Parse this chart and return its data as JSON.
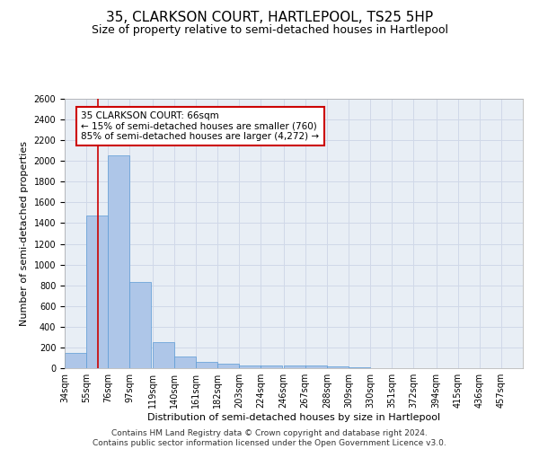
{
  "title": "35, CLARKSON COURT, HARTLEPOOL, TS25 5HP",
  "subtitle": "Size of property relative to semi-detached houses in Hartlepool",
  "xlabel": "Distribution of semi-detached houses by size in Hartlepool",
  "ylabel": "Number of semi-detached properties",
  "footer_line1": "Contains HM Land Registry data © Crown copyright and database right 2024.",
  "footer_line2": "Contains public sector information licensed under the Open Government Licence v3.0.",
  "annotation_title": "35 CLARKSON COURT: 66sqm",
  "annotation_line1": "← 15% of semi-detached houses are smaller (760)",
  "annotation_line2": "85% of semi-detached houses are larger (4,272) →",
  "property_size": 66,
  "bar_left_edges": [
    34,
    55,
    76,
    97,
    119,
    140,
    161,
    182,
    203,
    224,
    246,
    267,
    288,
    309,
    330,
    351,
    372,
    394,
    415,
    436
  ],
  "bar_values": [
    150,
    1470,
    2050,
    830,
    250,
    110,
    65,
    40,
    30,
    30,
    25,
    25,
    20,
    10,
    0,
    0,
    0,
    0,
    0,
    0
  ],
  "bar_color": "#aec6e8",
  "bar_edge_color": "#5b9bd5",
  "red_line_color": "#cc0000",
  "annotation_box_color": "#cc0000",
  "grid_color": "#d0d8e8",
  "background_color": "#e8eef5",
  "ylim": [
    0,
    2600
  ],
  "yticks": [
    0,
    200,
    400,
    600,
    800,
    1000,
    1200,
    1400,
    1600,
    1800,
    2000,
    2200,
    2400,
    2600
  ],
  "xtick_labels": [
    "34sqm",
    "55sqm",
    "76sqm",
    "97sqm",
    "119sqm",
    "140sqm",
    "161sqm",
    "182sqm",
    "203sqm",
    "224sqm",
    "246sqm",
    "267sqm",
    "288sqm",
    "309sqm",
    "330sqm",
    "351sqm",
    "372sqm",
    "394sqm",
    "415sqm",
    "436sqm",
    "457sqm"
  ],
  "title_fontsize": 11,
  "subtitle_fontsize": 9,
  "axis_label_fontsize": 8,
  "tick_fontsize": 7,
  "annotation_fontsize": 7.5,
  "footer_fontsize": 6.5
}
